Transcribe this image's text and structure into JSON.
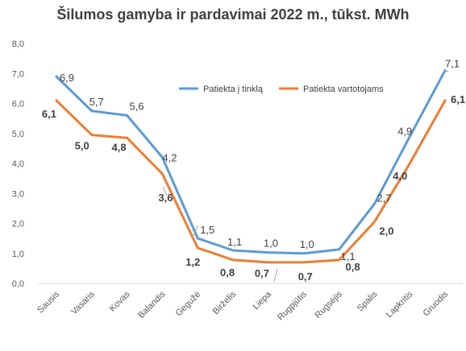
{
  "chart_data": {
    "type": "line",
    "title": "Šilumos gamyba ir pardavimai 2022 m., tūkst. MWh",
    "xlabel": "",
    "ylabel": "",
    "ylim": [
      0,
      8
    ],
    "yticks": [
      "0,0",
      "1,0",
      "2,0",
      "3,0",
      "4,0",
      "5,0",
      "6,0",
      "7,0",
      "8,0"
    ],
    "grid": false,
    "legend_position": "top-right",
    "categories": [
      "Sausis",
      "Vasaris",
      "Kovas",
      "Balandis",
      "Gegužė",
      "Birželis",
      "Liepa",
      "Rugpjūtis",
      "Rugsėjis",
      "Spalis",
      "Lapkritis",
      "Gruodis"
    ],
    "series": [
      {
        "name": "Patiekta į tinklą",
        "color": "#5B9BD5",
        "values": [
          6.9,
          5.75,
          5.6,
          4.2,
          1.5,
          1.1,
          1.03,
          1.0,
          1.13,
          2.65,
          4.9,
          7.1
        ],
        "labels": [
          "6,9",
          "5,7",
          "5,6",
          "4,2",
          "1,5",
          "1,1",
          "1,0",
          "1,0",
          "1,1",
          "2,7",
          "4,9",
          "7,1"
        ]
      },
      {
        "name": "Patiekta vartotojams",
        "color": "#ED7D31",
        "values": [
          6.1,
          4.95,
          4.85,
          3.65,
          1.18,
          0.78,
          0.7,
          0.7,
          0.78,
          2.05,
          4.0,
          6.1
        ],
        "labels": [
          "6,1",
          "5,0",
          "4,8",
          "3,6",
          "1,2",
          "0,8",
          "0,7",
          "0,7",
          "0,8",
          "2,0",
          "4,0",
          "6,1"
        ]
      }
    ]
  }
}
